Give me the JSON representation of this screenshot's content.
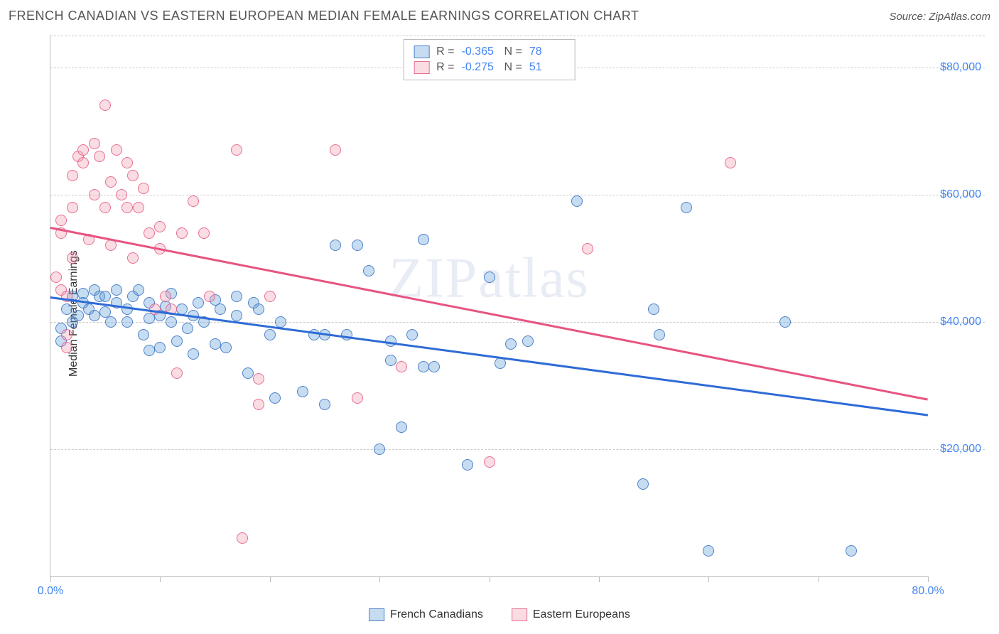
{
  "header": {
    "title": "FRENCH CANADIAN VS EASTERN EUROPEAN MEDIAN FEMALE EARNINGS CORRELATION CHART",
    "source": "Source: ZipAtlas.com"
  },
  "watermark": "ZIPatlas",
  "chart": {
    "type": "scatter",
    "ylabel": "Median Female Earnings",
    "xlim": [
      0,
      80
    ],
    "ylim": [
      0,
      85000
    ],
    "xtick_positions": [
      0,
      10,
      20,
      30,
      40,
      50,
      60,
      70,
      80
    ],
    "xtick_labels": {
      "0": "0.0%",
      "80": "80.0%"
    },
    "ytick_positions": [
      20000,
      40000,
      60000,
      80000
    ],
    "ytick_labels": [
      "$20,000",
      "$40,000",
      "$60,000",
      "$80,000"
    ],
    "grid_top_y": 85000,
    "grid_color": "#cccccc",
    "background_color": "#ffffff",
    "axis_color": "#bbbbbb",
    "tick_label_color": "#4285f4",
    "point_radius": 8,
    "point_fill_opacity": 0.35,
    "point_stroke_opacity": 0.9,
    "series": [
      {
        "name": "French Canadians",
        "color": "#5b9bd5",
        "fill": "rgba(91,155,213,0.35)",
        "stroke": "rgba(67,120,200,0.9)",
        "R": "-0.365",
        "N": "78",
        "trend": {
          "x1": 0,
          "y1": 44000,
          "x2": 80,
          "y2": 25500,
          "color": "#2e6bd6",
          "width": 2.5
        },
        "points": [
          [
            1,
            39000
          ],
          [
            1,
            37000
          ],
          [
            1.5,
            42000
          ],
          [
            2,
            44000
          ],
          [
            2,
            40000
          ],
          [
            2.5,
            41000
          ],
          [
            3,
            44500
          ],
          [
            3,
            43000
          ],
          [
            3.5,
            42000
          ],
          [
            4,
            45000
          ],
          [
            4,
            41000
          ],
          [
            4.5,
            44000
          ],
          [
            5,
            41500
          ],
          [
            5,
            44000
          ],
          [
            5.5,
            40000
          ],
          [
            6,
            45000
          ],
          [
            6,
            43000
          ],
          [
            7,
            40000
          ],
          [
            7,
            42000
          ],
          [
            7.5,
            44000
          ],
          [
            8,
            45000
          ],
          [
            8.5,
            38000
          ],
          [
            9,
            43000
          ],
          [
            9,
            40500
          ],
          [
            9,
            35500
          ],
          [
            10,
            41000
          ],
          [
            10,
            36000
          ],
          [
            10.5,
            42500
          ],
          [
            11,
            44500
          ],
          [
            11,
            40000
          ],
          [
            11.5,
            37000
          ],
          [
            12,
            42000
          ],
          [
            12.5,
            39000
          ],
          [
            13,
            41000
          ],
          [
            13,
            35000
          ],
          [
            13.5,
            43000
          ],
          [
            14,
            40000
          ],
          [
            15,
            36500
          ],
          [
            15,
            43500
          ],
          [
            15.5,
            42000
          ],
          [
            16,
            36000
          ],
          [
            17,
            41000
          ],
          [
            17,
            44000
          ],
          [
            18,
            32000
          ],
          [
            18.5,
            43000
          ],
          [
            19,
            42000
          ],
          [
            20,
            38000
          ],
          [
            20.5,
            28000
          ],
          [
            21,
            40000
          ],
          [
            23,
            29000
          ],
          [
            24,
            38000
          ],
          [
            25,
            38000
          ],
          [
            25,
            27000
          ],
          [
            26,
            52000
          ],
          [
            27,
            38000
          ],
          [
            28,
            52000
          ],
          [
            29,
            48000
          ],
          [
            30,
            20000
          ],
          [
            31,
            37000
          ],
          [
            31,
            34000
          ],
          [
            32,
            23500
          ],
          [
            33,
            38000
          ],
          [
            34,
            53000
          ],
          [
            34,
            33000
          ],
          [
            35,
            33000
          ],
          [
            38,
            17500
          ],
          [
            40,
            47000
          ],
          [
            41,
            33500
          ],
          [
            42,
            36500
          ],
          [
            43.5,
            37000
          ],
          [
            48,
            59000
          ],
          [
            54,
            14500
          ],
          [
            55,
            42000
          ],
          [
            55.5,
            38000
          ],
          [
            58,
            58000
          ],
          [
            60,
            4000
          ],
          [
            67,
            40000
          ],
          [
            73,
            4000
          ]
        ]
      },
      {
        "name": "Eastern Europeans",
        "color": "#f19ab0",
        "fill": "rgba(241,154,176,0.35)",
        "stroke": "rgba(230,100,140,0.9)",
        "R": "-0.275",
        "N": "51",
        "trend": {
          "x1": 0,
          "y1": 55000,
          "x2": 80,
          "y2": 28000,
          "color": "#e75480",
          "width": 2.5
        },
        "points": [
          [
            0.5,
            47000
          ],
          [
            1,
            56000
          ],
          [
            1,
            54000
          ],
          [
            1,
            45000
          ],
          [
            1.5,
            44000
          ],
          [
            1.5,
            38000
          ],
          [
            1.5,
            36000
          ],
          [
            2,
            63000
          ],
          [
            2,
            58000
          ],
          [
            2,
            50000
          ],
          [
            2.5,
            66000
          ],
          [
            3,
            67000
          ],
          [
            3,
            65000
          ],
          [
            3.5,
            53000
          ],
          [
            4,
            60000
          ],
          [
            4,
            68000
          ],
          [
            4.5,
            66000
          ],
          [
            5,
            74000
          ],
          [
            5,
            58000
          ],
          [
            5.5,
            62000
          ],
          [
            5.5,
            52000
          ],
          [
            6,
            67000
          ],
          [
            6.5,
            60000
          ],
          [
            7,
            65000
          ],
          [
            7,
            58000
          ],
          [
            7.5,
            63000
          ],
          [
            7.5,
            50000
          ],
          [
            8,
            58000
          ],
          [
            8.5,
            61000
          ],
          [
            9,
            54000
          ],
          [
            9.5,
            42000
          ],
          [
            10,
            55000
          ],
          [
            10,
            51500
          ],
          [
            10.5,
            44000
          ],
          [
            11,
            42000
          ],
          [
            11.5,
            32000
          ],
          [
            12,
            54000
          ],
          [
            13,
            59000
          ],
          [
            14,
            54000
          ],
          [
            14.5,
            44000
          ],
          [
            17,
            67000
          ],
          [
            17.5,
            6000
          ],
          [
            19,
            31000
          ],
          [
            19,
            27000
          ],
          [
            20,
            44000
          ],
          [
            26,
            67000
          ],
          [
            28,
            28000
          ],
          [
            32,
            33000
          ],
          [
            40,
            18000
          ],
          [
            49,
            51500
          ],
          [
            62,
            65000
          ]
        ]
      }
    ]
  },
  "stats_box": {
    "R_label": "R =",
    "N_label": "N ="
  },
  "legend": {
    "items": [
      "French Canadians",
      "Eastern Europeans"
    ]
  }
}
